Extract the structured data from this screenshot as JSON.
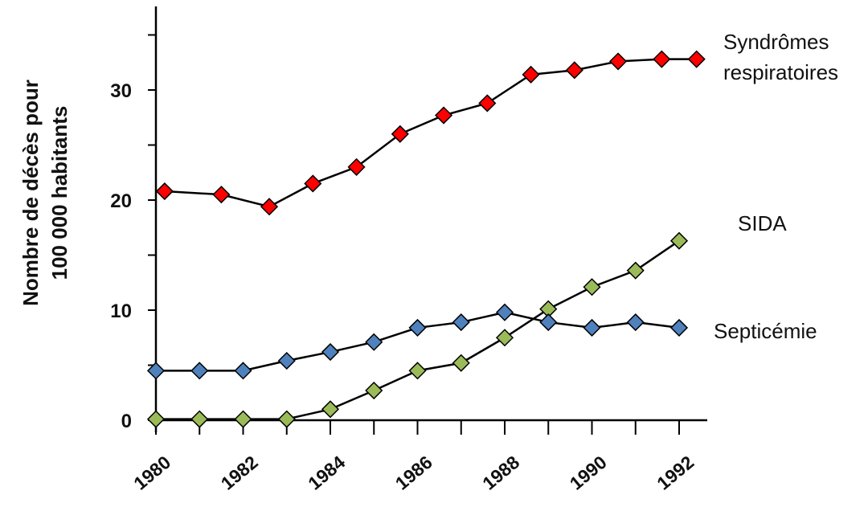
{
  "chart_data": {
    "type": "line",
    "ylabel_lines": [
      "Nombre de décès pour",
      "100 000 habitants"
    ],
    "xlabel": "",
    "xlim": [
      1980,
      1992.4
    ],
    "ylim": [
      0,
      38
    ],
    "y_ticks": [
      0,
      10,
      20,
      30
    ],
    "x_ticks": [
      1980,
      1982,
      1984,
      1986,
      1988,
      1990,
      1992
    ],
    "grid": false,
    "series": [
      {
        "name": "Syndrômes respiratoires",
        "label_lines": [
          "Syndrômes",
          "respiratoires"
        ],
        "color": "#ff0000",
        "x": [
          1980.2,
          1981.5,
          1982.6,
          1983.6,
          1984.6,
          1985.6,
          1986.6,
          1987.6,
          1988.6,
          1989.6,
          1990.6,
          1991.6,
          1992.4
        ],
        "values": [
          20.8,
          20.5,
          19.4,
          21.5,
          23.0,
          26.0,
          27.7,
          28.8,
          31.4,
          31.8,
          32.6,
          32.8,
          32.8
        ]
      },
      {
        "name": "SIDA",
        "label_lines": [
          "SIDA"
        ],
        "color": "#9bbb59",
        "x": [
          1980,
          1981,
          1982,
          1983,
          1984,
          1985,
          1986,
          1987,
          1988,
          1989,
          1990,
          1991,
          1992
        ],
        "values": [
          0.1,
          0.1,
          0.1,
          0.1,
          1.0,
          2.7,
          4.5,
          5.2,
          7.5,
          10.1,
          12.1,
          13.6,
          16.3
        ]
      },
      {
        "name": "Septicémie",
        "label_lines": [
          "Septicémie"
        ],
        "color": "#4f81bd",
        "x": [
          1980,
          1981,
          1982,
          1983,
          1984,
          1985,
          1986,
          1987,
          1988,
          1989,
          1990,
          1991,
          1992
        ],
        "values": [
          4.5,
          4.5,
          4.5,
          5.4,
          6.2,
          7.1,
          8.4,
          8.9,
          9.8,
          8.9,
          8.4,
          8.9,
          8.4
        ]
      }
    ]
  }
}
